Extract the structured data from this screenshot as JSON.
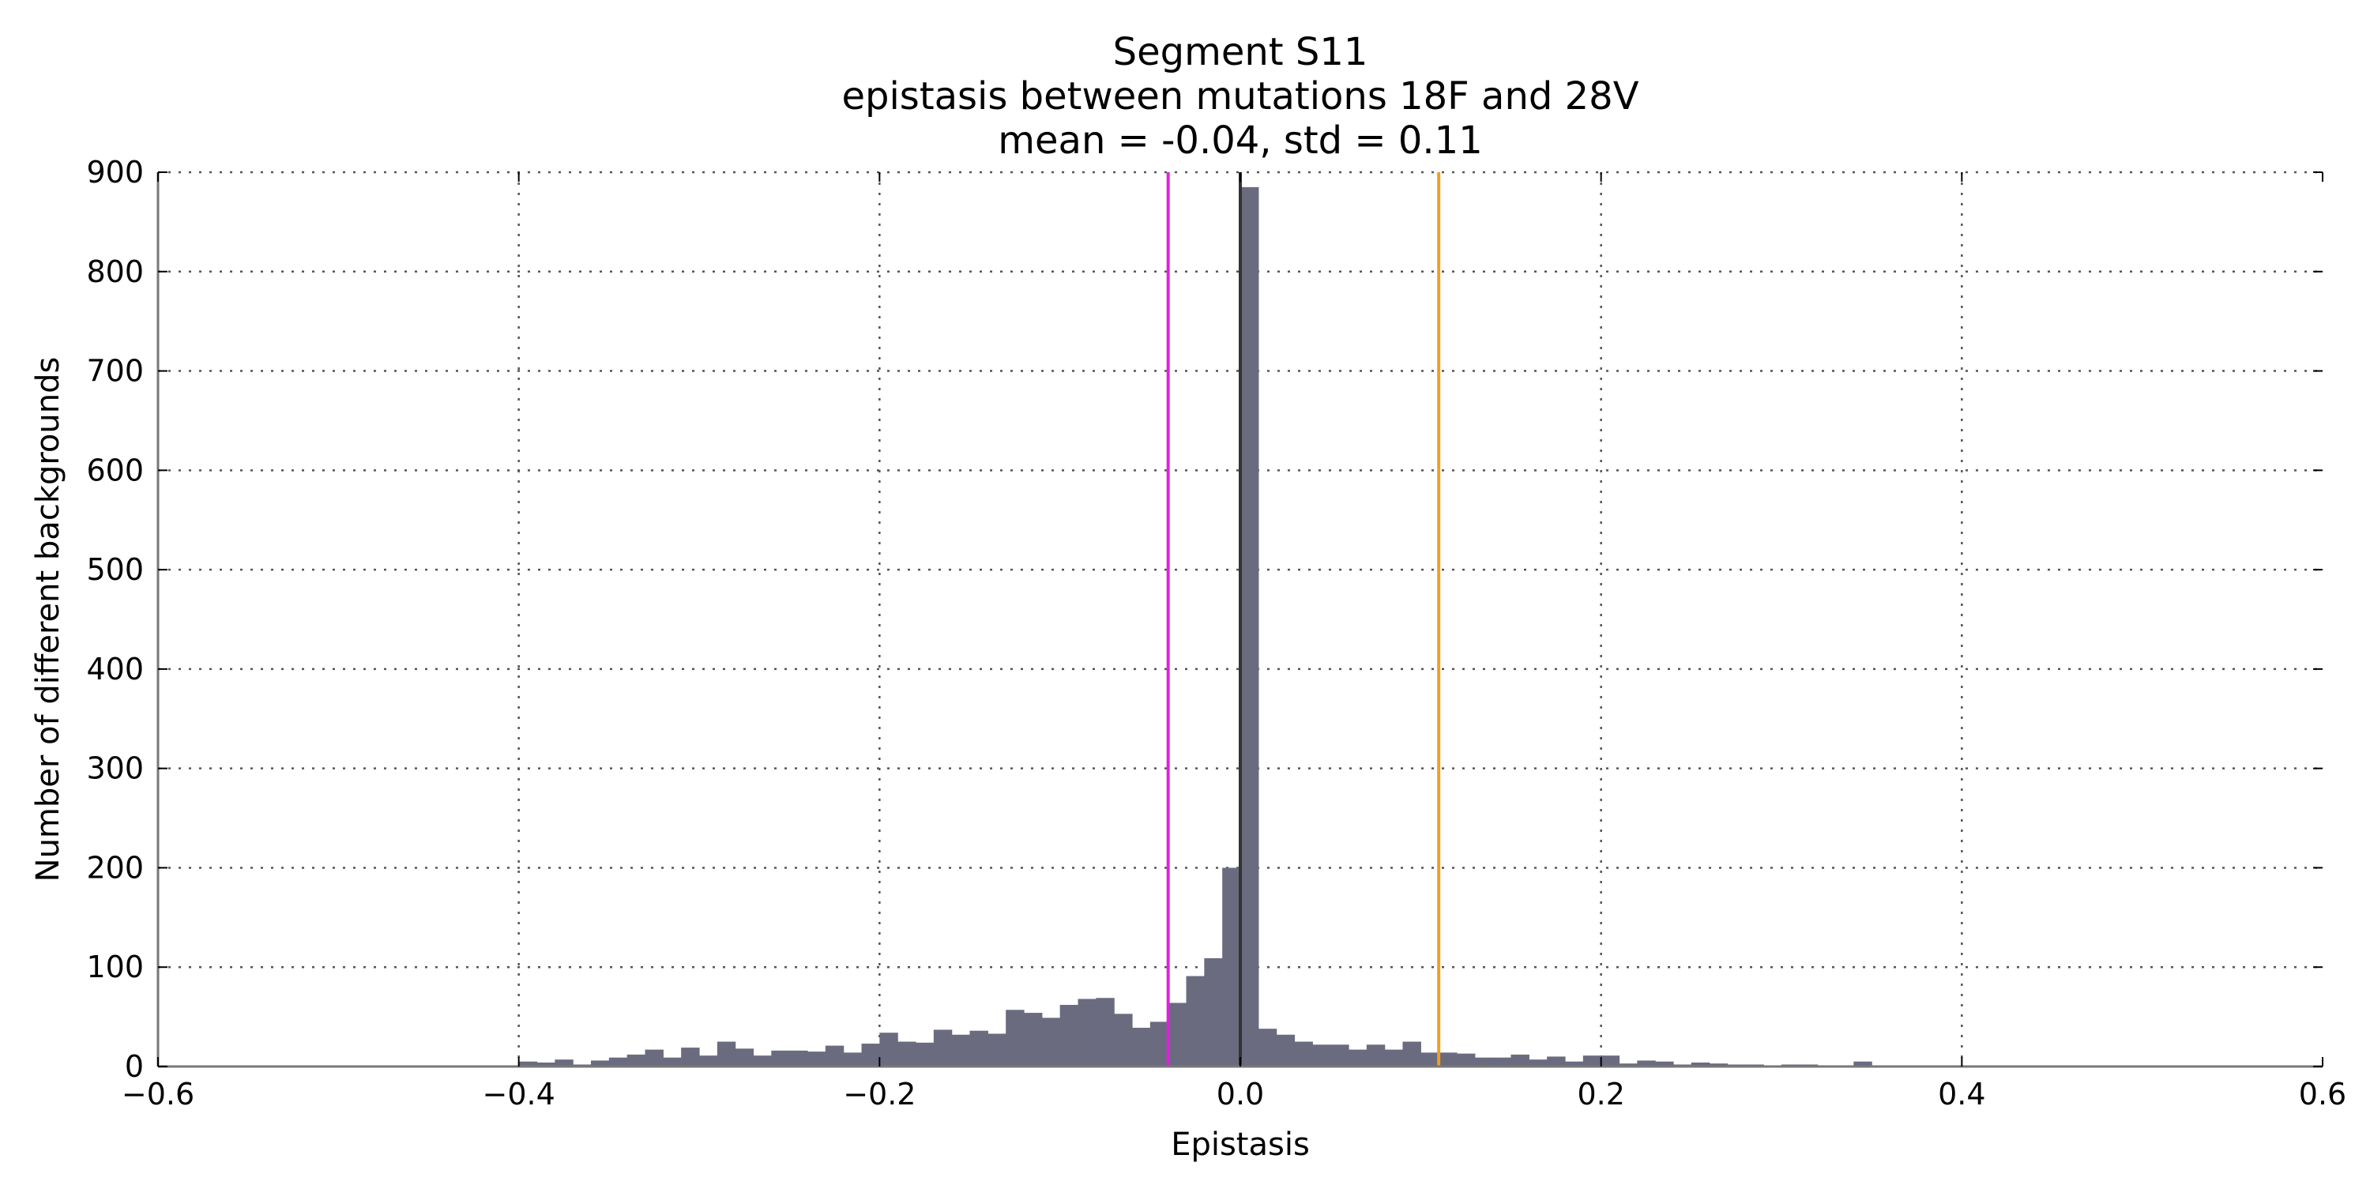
{
  "chart_data": {
    "type": "bar",
    "title_lines": [
      "Segment S11",
      "epistasis between mutations 18F and 28V",
      "mean = -0.04, std = 0.11"
    ],
    "xlabel": "Epistasis",
    "ylabel": "Number of different backgrounds",
    "xlim": [
      -0.6,
      0.6
    ],
    "ylim": [
      0,
      900
    ],
    "xticks": [
      -0.6,
      -0.4,
      -0.2,
      0.0,
      0.2,
      0.4,
      0.6
    ],
    "xtick_labels": [
      "−0.6",
      "−0.4",
      "−0.2",
      "0.0",
      "0.2",
      "0.4",
      "0.6"
    ],
    "yticks": [
      0,
      100,
      200,
      300,
      400,
      500,
      600,
      700,
      800,
      900
    ],
    "ytick_labels": [
      "0",
      "100",
      "200",
      "300",
      "400",
      "500",
      "600",
      "700",
      "800",
      "900"
    ],
    "grid": true,
    "bin_width": 0.01,
    "bin_starts": [
      -0.6,
      -0.59,
      -0.58,
      -0.57,
      -0.56,
      -0.55,
      -0.54,
      -0.53,
      -0.52,
      -0.51,
      -0.5,
      -0.49,
      -0.48,
      -0.47,
      -0.46,
      -0.45,
      -0.44,
      -0.43,
      -0.42,
      -0.41,
      -0.4,
      -0.39,
      -0.38,
      -0.37,
      -0.36,
      -0.35,
      -0.34,
      -0.33,
      -0.32,
      -0.31,
      -0.3,
      -0.29,
      -0.28,
      -0.27,
      -0.26,
      -0.25,
      -0.24,
      -0.23,
      -0.22,
      -0.21,
      -0.2,
      -0.19,
      -0.18,
      -0.17,
      -0.16,
      -0.15,
      -0.14,
      -0.13,
      -0.12,
      -0.11,
      -0.1,
      -0.09,
      -0.08,
      -0.07,
      -0.06,
      -0.05,
      -0.04,
      -0.03,
      -0.02,
      -0.01,
      0.0,
      0.01,
      0.02,
      0.03,
      0.04,
      0.05,
      0.06,
      0.07,
      0.08,
      0.09,
      0.1,
      0.11,
      0.12,
      0.13,
      0.14,
      0.15,
      0.16,
      0.17,
      0.18,
      0.19,
      0.2,
      0.21,
      0.22,
      0.23,
      0.24,
      0.25,
      0.26,
      0.27,
      0.28,
      0.29,
      0.3,
      0.31,
      0.32,
      0.33,
      0.34,
      0.35,
      0.36,
      0.37,
      0.38,
      0.39,
      0.4,
      0.41,
      0.42,
      0.43,
      0.44,
      0.45,
      0.46,
      0.47,
      0.48,
      0.49,
      0.5,
      0.51,
      0.52,
      0.53,
      0.54,
      0.55,
      0.56,
      0.57,
      0.58,
      0.59
    ],
    "counts": [
      1,
      1,
      1,
      1,
      1,
      1,
      1,
      1,
      1,
      1,
      1,
      1,
      1,
      1,
      1,
      1,
      1,
      1,
      1,
      1,
      5,
      4,
      7,
      2,
      6,
      9,
      12,
      17,
      9,
      19,
      11,
      25,
      18,
      11,
      16,
      16,
      15,
      21,
      14,
      23,
      34,
      25,
      24,
      37,
      32,
      36,
      33,
      57,
      54,
      49,
      62,
      68,
      69,
      53,
      39,
      45,
      64,
      91,
      109,
      200,
      885,
      38,
      32,
      25,
      22,
      22,
      17,
      22,
      17,
      25,
      14,
      14,
      13,
      9,
      9,
      12,
      7,
      10,
      5,
      11,
      11,
      3,
      6,
      5,
      2,
      4,
      3,
      2,
      2,
      1,
      2,
      2,
      1,
      1,
      5,
      1,
      1,
      1,
      1,
      1,
      1,
      1,
      1,
      1,
      1,
      1,
      1,
      1,
      1,
      1,
      1,
      1,
      1,
      1,
      1,
      1,
      1,
      1,
      1,
      1
    ],
    "vlines": [
      {
        "x": -0.04,
        "color": "#dd22dd"
      },
      {
        "x": 0.11,
        "color": "#f0a020"
      },
      {
        "x": 0.0,
        "color": "#333333"
      }
    ],
    "bar_color": "#6b6b80"
  }
}
